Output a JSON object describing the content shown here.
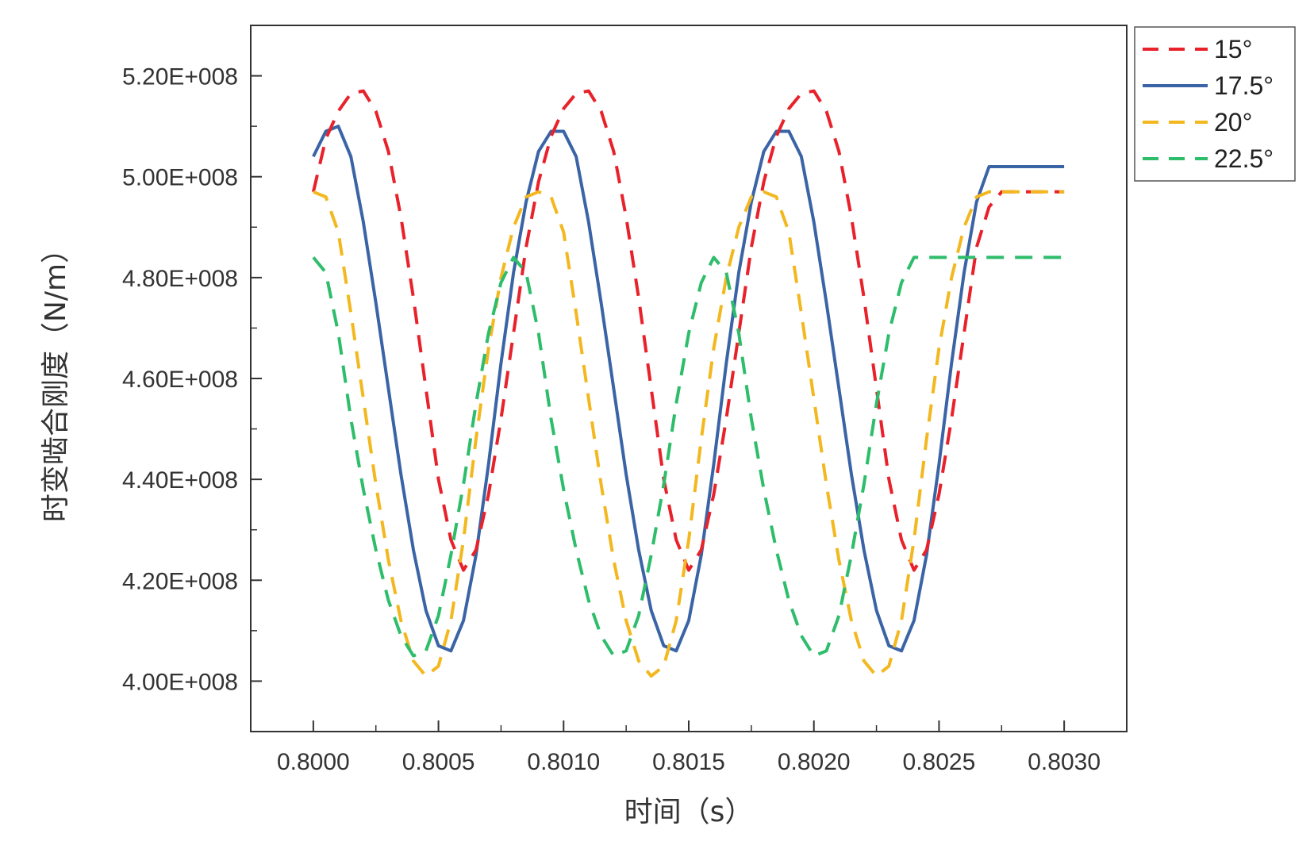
{
  "chart_data": {
    "type": "line",
    "xlabel": "时间（s）",
    "ylabel": "时变啮合刚度（N/m）",
    "xlim": [
      0.79975,
      0.80325
    ],
    "ylim": [
      390000000.0,
      530000000.0
    ],
    "xticks": [
      0.8,
      0.8005,
      0.801,
      0.8015,
      0.802,
      0.8025,
      0.803
    ],
    "xtick_labels": [
      "0.8000",
      "0.8005",
      "0.8010",
      "0.8015",
      "0.8020",
      "0.8025",
      "0.8030"
    ],
    "yticks": [
      400000000.0,
      420000000.0,
      440000000.0,
      460000000.0,
      480000000.0,
      500000000.0,
      520000000.0
    ],
    "ytick_labels": [
      "4.00E+008",
      "4.20E+008",
      "4.40E+008",
      "4.60E+008",
      "4.80E+008",
      "5.00E+008",
      "5.20E+008"
    ],
    "grid": false,
    "legend_position": "outside-top-right",
    "series": [
      {
        "name": "15°",
        "color": "#e8212a",
        "dash": "dashed",
        "x": [
          0.8,
          0.80005,
          0.8001,
          0.80015,
          0.8002,
          0.80025,
          0.8003,
          0.80035,
          0.8004,
          0.80045,
          0.8005,
          0.80055,
          0.8006,
          0.80065,
          0.8007,
          0.80075,
          0.8008,
          0.80085,
          0.8009,
          0.80095,
          0.801,
          0.80105,
          0.8011,
          0.80115,
          0.8012,
          0.80125,
          0.8013,
          0.80135,
          0.8014,
          0.80145,
          0.8015,
          0.80155,
          0.8016,
          0.80165,
          0.8017,
          0.80175,
          0.8018,
          0.80185,
          0.8019,
          0.80195,
          0.802,
          0.80205,
          0.8021,
          0.80215,
          0.8022,
          0.80225,
          0.8023,
          0.80235,
          0.8024,
          0.80245,
          0.8025,
          0.80255,
          0.8026,
          0.80265,
          0.8027,
          0.80275,
          0.8028,
          0.80285,
          0.8029,
          0.80295,
          0.803
        ],
        "y": [
          497000000,
          507500000,
          513000000,
          516500000,
          517000000,
          513000000,
          505000000,
          492000000,
          476000000,
          458000000,
          440000000,
          428000000,
          422000000,
          426000000,
          437000000,
          452000000,
          469000000,
          486000000,
          499000000,
          508000000,
          513500000,
          516500000,
          517000000,
          513000000,
          505000000,
          492000000,
          476000000,
          458000000,
          440000000,
          428000000,
          422000000,
          426000000,
          437000000,
          452000000,
          469000000,
          486000000,
          499000000,
          508000000,
          513500000,
          516500000,
          517000000,
          513000000,
          505000000,
          492000000,
          476000000,
          458000000,
          440000000,
          428000000,
          422000000,
          426000000,
          437000000,
          452000000,
          469000000,
          486000000,
          494000000,
          497000000,
          497000000,
          497000000,
          497000000,
          497000000,
          497000000
        ]
      },
      {
        "name": "17.5°",
        "color": "#3a64a6",
        "dash": "solid",
        "x": [
          0.8,
          0.80005,
          0.8001,
          0.80015,
          0.8002,
          0.80025,
          0.8003,
          0.80035,
          0.8004,
          0.80045,
          0.8005,
          0.80055,
          0.8006,
          0.80065,
          0.8007,
          0.80075,
          0.8008,
          0.80085,
          0.8009,
          0.80095,
          0.801,
          0.80105,
          0.8011,
          0.80115,
          0.8012,
          0.80125,
          0.8013,
          0.80135,
          0.8014,
          0.80145,
          0.8015,
          0.80155,
          0.8016,
          0.80165,
          0.8017,
          0.80175,
          0.8018,
          0.80185,
          0.8019,
          0.80195,
          0.802,
          0.80205,
          0.8021,
          0.80215,
          0.8022,
          0.80225,
          0.8023,
          0.80235,
          0.8024,
          0.80245,
          0.8025,
          0.80255,
          0.8026,
          0.80265,
          0.8027,
          0.80275,
          0.8028,
          0.80285,
          0.8029,
          0.80295,
          0.803
        ],
        "y": [
          504000000,
          509000000,
          510000000,
          504000000,
          491000000,
          475000000,
          458000000,
          441000000,
          426000000,
          414000000,
          407000000,
          406000000,
          412000000,
          425000000,
          443000000,
          463000000,
          481000000,
          495000000,
          505000000,
          509000000,
          509000000,
          504000000,
          491000000,
          475000000,
          458000000,
          441000000,
          426000000,
          414000000,
          407000000,
          406000000,
          412000000,
          425000000,
          443000000,
          463000000,
          481000000,
          495000000,
          505000000,
          509000000,
          509000000,
          504000000,
          491000000,
          475000000,
          458000000,
          441000000,
          426000000,
          414000000,
          407000000,
          406000000,
          412000000,
          425000000,
          443000000,
          463000000,
          481000000,
          495000000,
          502000000,
          502000000,
          502000000,
          502000000,
          502000000,
          502000000,
          502000000
        ]
      },
      {
        "name": "20°",
        "color": "#f3b81f",
        "dash": "dashed",
        "x": [
          0.8,
          0.80005,
          0.8001,
          0.80015,
          0.8002,
          0.80025,
          0.8003,
          0.80035,
          0.8004,
          0.80045,
          0.8005,
          0.80055,
          0.8006,
          0.80065,
          0.8007,
          0.80075,
          0.8008,
          0.80085,
          0.8009,
          0.80095,
          0.801,
          0.80105,
          0.8011,
          0.80115,
          0.8012,
          0.80125,
          0.8013,
          0.80135,
          0.8014,
          0.80145,
          0.8015,
          0.80155,
          0.8016,
          0.80165,
          0.8017,
          0.80175,
          0.8018,
          0.80185,
          0.8019,
          0.80195,
          0.802,
          0.80205,
          0.8021,
          0.80215,
          0.8022,
          0.80225,
          0.8023,
          0.80235,
          0.8024,
          0.80245,
          0.8025,
          0.80255,
          0.8026,
          0.80265,
          0.8027,
          0.80275,
          0.8028,
          0.80285,
          0.8029,
          0.80295,
          0.803
        ],
        "y": [
          497000000,
          496000000,
          489000000,
          473000000,
          456000000,
          439000000,
          424000000,
          412000000,
          404000000,
          401000000,
          403000000,
          412000000,
          428000000,
          448000000,
          466000000,
          480000000,
          490000000,
          496000000,
          497000000,
          496000000,
          489000000,
          473000000,
          456000000,
          439000000,
          424000000,
          412000000,
          404000000,
          401000000,
          403000000,
          412000000,
          428000000,
          448000000,
          466000000,
          480000000,
          490000000,
          496000000,
          497000000,
          496000000,
          489000000,
          473000000,
          456000000,
          439000000,
          424000000,
          412000000,
          404000000,
          401000000,
          403000000,
          412000000,
          428000000,
          448000000,
          466000000,
          480000000,
          490000000,
          496000000,
          497000000,
          497000000,
          497000000,
          497000000,
          497000000,
          497000000,
          497000000
        ]
      },
      {
        "name": "22.5°",
        "color": "#2ebd6b",
        "dash": "dashed",
        "x": [
          0.8,
          0.80005,
          0.8001,
          0.80015,
          0.8002,
          0.80025,
          0.8003,
          0.80035,
          0.8004,
          0.80045,
          0.8005,
          0.80055,
          0.8006,
          0.80065,
          0.8007,
          0.80075,
          0.8008,
          0.80085,
          0.8009,
          0.80095,
          0.801,
          0.80105,
          0.8011,
          0.80115,
          0.8012,
          0.80125,
          0.8013,
          0.80135,
          0.8014,
          0.80145,
          0.8015,
          0.80155,
          0.8016,
          0.80165,
          0.8017,
          0.80175,
          0.8018,
          0.80185,
          0.8019,
          0.80195,
          0.802,
          0.80205,
          0.8021,
          0.80215,
          0.8022,
          0.80225,
          0.8023,
          0.80235,
          0.8024,
          0.80245,
          0.8025,
          0.80255,
          0.8026,
          0.80265,
          0.8027,
          0.80275,
          0.8028,
          0.80285,
          0.8029,
          0.80295,
          0.803
        ],
        "y": [
          484000000,
          481000000,
          469000000,
          452000000,
          438000000,
          426000000,
          416000000,
          409000000,
          405000000,
          406000000,
          413000000,
          425000000,
          439000000,
          455000000,
          469000000,
          479000000,
          484000000,
          481000000,
          469000000,
          452000000,
          438000000,
          426000000,
          416000000,
          409000000,
          405000000,
          406000000,
          413000000,
          425000000,
          439000000,
          455000000,
          469000000,
          479000000,
          484000000,
          481000000,
          469000000,
          452000000,
          438000000,
          426000000,
          416000000,
          409000000,
          405000000,
          406000000,
          413000000,
          425000000,
          439000000,
          455000000,
          469000000,
          479000000,
          484000000,
          484000000,
          484000000,
          484000000,
          484000000,
          484000000,
          484000000,
          484000000,
          484000000,
          484000000,
          484000000,
          484000000,
          484000000
        ]
      }
    ]
  }
}
